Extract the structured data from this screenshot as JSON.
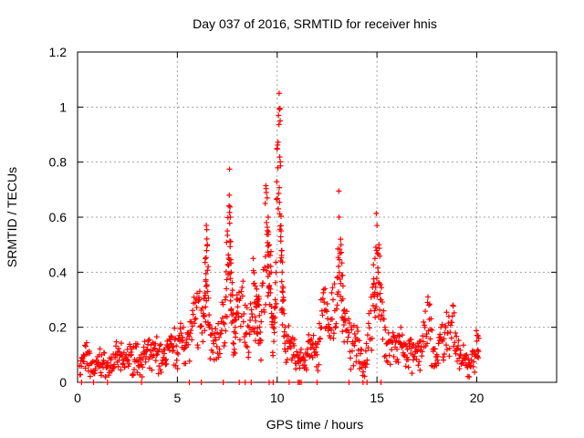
{
  "colors": {
    "series": "#ff0000",
    "grid": "#a0a0a0",
    "axes": "#000000"
  },
  "chart_data": {
    "type": "scatter",
    "title": "Day 037 of 2016, SRMTID for receiver hnis",
    "xlabel": "GPS time / hours",
    "ylabel": "SRMTID / TECUs",
    "xlim": [
      0,
      24
    ],
    "ylim": [
      0,
      1.2
    ],
    "xticks": [
      0,
      5,
      10,
      15,
      20
    ],
    "yticks": [
      0,
      0.2,
      0.4,
      0.6,
      0.8,
      1,
      1.2
    ],
    "xtick_labels": [
      "0",
      "5",
      "10",
      "15",
      "20"
    ],
    "ytick_labels": [
      "0",
      "0.2",
      "0.4",
      "0.6",
      "0.8",
      "1",
      "1.2"
    ],
    "grid": true,
    "marker": "+",
    "series": [
      {
        "name": "SRMTID",
        "x": [
          0.1,
          0.3,
          0.5,
          0.7,
          0.9,
          1.1,
          1.3,
          1.5,
          1.7,
          1.9,
          2.1,
          2.3,
          2.5,
          2.7,
          2.9,
          3.1,
          3.3,
          3.5,
          3.7,
          3.9,
          4.1,
          4.3,
          4.5,
          4.7,
          4.9,
          5.1,
          5.3,
          5.5,
          5.7,
          5.9,
          6.1,
          6.3,
          6.4,
          6.45,
          6.5,
          6.6,
          6.8,
          7.0,
          7.2,
          7.4,
          7.5,
          7.6,
          7.65,
          7.7,
          7.8,
          7.9,
          8.0,
          8.2,
          8.4,
          8.6,
          8.8,
          8.9,
          9.0,
          9.1,
          9.2,
          9.4,
          9.5,
          9.55,
          9.6,
          9.7,
          9.8,
          9.9,
          10.0,
          10.1,
          10.15,
          10.2,
          10.25,
          10.3,
          10.4,
          10.6,
          10.8,
          11.0,
          11.2,
          11.4,
          11.6,
          11.8,
          12.0,
          12.2,
          12.4,
          12.6,
          12.8,
          13.0,
          13.1,
          13.2,
          13.3,
          13.4,
          13.6,
          13.8,
          14.0,
          14.2,
          14.4,
          14.6,
          14.8,
          14.9,
          15.0,
          15.1,
          15.2,
          15.4,
          15.6,
          15.8,
          16.0,
          16.2,
          16.4,
          16.6,
          16.8,
          17.0,
          17.2,
          17.4,
          17.6,
          17.8,
          18.0,
          18.2,
          18.4,
          18.6,
          18.8,
          19.0,
          19.2,
          19.4,
          19.6,
          19.8,
          20.0,
          20.1
        ],
        "y": [
          0.06,
          0.1,
          0.11,
          0.07,
          0.05,
          0.1,
          0.08,
          0.06,
          0.09,
          0.1,
          0.11,
          0.08,
          0.12,
          0.1,
          0.13,
          0.09,
          0.11,
          0.12,
          0.1,
          0.14,
          0.12,
          0.09,
          0.15,
          0.14,
          0.16,
          0.17,
          0.2,
          0.18,
          0.22,
          0.29,
          0.3,
          0.25,
          0.45,
          0.57,
          0.5,
          0.2,
          0.15,
          0.18,
          0.22,
          0.3,
          0.55,
          0.68,
          0.6,
          0.4,
          0.25,
          0.2,
          0.3,
          0.33,
          0.28,
          0.2,
          0.45,
          0.35,
          0.3,
          0.28,
          0.22,
          0.65,
          0.67,
          0.6,
          0.5,
          0.4,
          0.2,
          0.3,
          0.85,
          1.05,
          0.95,
          0.55,
          0.4,
          0.3,
          0.2,
          0.15,
          0.14,
          0.1,
          0.12,
          0.08,
          0.15,
          0.14,
          0.1,
          0.3,
          0.34,
          0.2,
          0.3,
          0.38,
          0.6,
          0.5,
          0.35,
          0.25,
          0.18,
          0.14,
          0.2,
          0.12,
          0.07,
          0.25,
          0.32,
          0.45,
          0.57,
          0.5,
          0.3,
          0.2,
          0.15,
          0.18,
          0.12,
          0.2,
          0.1,
          0.15,
          0.1,
          0.12,
          0.15,
          0.2,
          0.28,
          0.12,
          0.1,
          0.2,
          0.18,
          0.24,
          0.28,
          0.12,
          0.1,
          0.09,
          0.07,
          0.11,
          0.15,
          0.16
        ],
        "zeros_x": [
          0.2,
          0.8,
          1.5,
          3.2,
          5.6,
          6.2,
          7.3,
          8.1,
          8.4,
          8.7,
          9.6,
          9.8,
          10.6,
          11.05,
          11.12,
          11.2,
          12.0,
          13.6,
          14.3,
          14.5,
          15.2
        ]
      }
    ]
  }
}
